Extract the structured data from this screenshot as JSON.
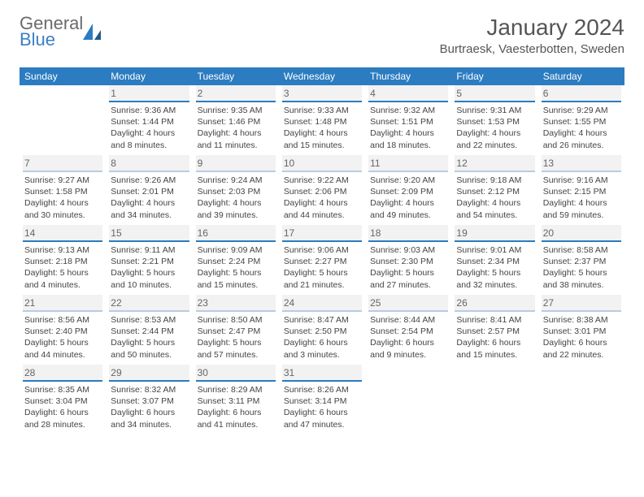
{
  "logo": {
    "line1": "General",
    "line2": "Blue"
  },
  "title": "January 2024",
  "location": "Burtraesk, Vaesterbotten, Sweden",
  "colors": {
    "header_bg": "#2b7cc0",
    "border_strong": "#2b7cc0",
    "border_light": "#b8cde2",
    "daynum_bg": "#f2f2f2",
    "text": "#444"
  },
  "weekdays": [
    "Sunday",
    "Monday",
    "Tuesday",
    "Wednesday",
    "Thursday",
    "Friday",
    "Saturday"
  ],
  "weeks": [
    [
      {
        "n": "",
        "sr": "",
        "ss": "",
        "dl": ""
      },
      {
        "n": "1",
        "sr": "Sunrise: 9:36 AM",
        "ss": "Sunset: 1:44 PM",
        "dl": "Daylight: 4 hours and 8 minutes."
      },
      {
        "n": "2",
        "sr": "Sunrise: 9:35 AM",
        "ss": "Sunset: 1:46 PM",
        "dl": "Daylight: 4 hours and 11 minutes."
      },
      {
        "n": "3",
        "sr": "Sunrise: 9:33 AM",
        "ss": "Sunset: 1:48 PM",
        "dl": "Daylight: 4 hours and 15 minutes."
      },
      {
        "n": "4",
        "sr": "Sunrise: 9:32 AM",
        "ss": "Sunset: 1:51 PM",
        "dl": "Daylight: 4 hours and 18 minutes."
      },
      {
        "n": "5",
        "sr": "Sunrise: 9:31 AM",
        "ss": "Sunset: 1:53 PM",
        "dl": "Daylight: 4 hours and 22 minutes."
      },
      {
        "n": "6",
        "sr": "Sunrise: 9:29 AM",
        "ss": "Sunset: 1:55 PM",
        "dl": "Daylight: 4 hours and 26 minutes."
      }
    ],
    [
      {
        "n": "7",
        "sr": "Sunrise: 9:27 AM",
        "ss": "Sunset: 1:58 PM",
        "dl": "Daylight: 4 hours and 30 minutes."
      },
      {
        "n": "8",
        "sr": "Sunrise: 9:26 AM",
        "ss": "Sunset: 2:01 PM",
        "dl": "Daylight: 4 hours and 34 minutes."
      },
      {
        "n": "9",
        "sr": "Sunrise: 9:24 AM",
        "ss": "Sunset: 2:03 PM",
        "dl": "Daylight: 4 hours and 39 minutes."
      },
      {
        "n": "10",
        "sr": "Sunrise: 9:22 AM",
        "ss": "Sunset: 2:06 PM",
        "dl": "Daylight: 4 hours and 44 minutes."
      },
      {
        "n": "11",
        "sr": "Sunrise: 9:20 AM",
        "ss": "Sunset: 2:09 PM",
        "dl": "Daylight: 4 hours and 49 minutes."
      },
      {
        "n": "12",
        "sr": "Sunrise: 9:18 AM",
        "ss": "Sunset: 2:12 PM",
        "dl": "Daylight: 4 hours and 54 minutes."
      },
      {
        "n": "13",
        "sr": "Sunrise: 9:16 AM",
        "ss": "Sunset: 2:15 PM",
        "dl": "Daylight: 4 hours and 59 minutes."
      }
    ],
    [
      {
        "n": "14",
        "sr": "Sunrise: 9:13 AM",
        "ss": "Sunset: 2:18 PM",
        "dl": "Daylight: 5 hours and 4 minutes."
      },
      {
        "n": "15",
        "sr": "Sunrise: 9:11 AM",
        "ss": "Sunset: 2:21 PM",
        "dl": "Daylight: 5 hours and 10 minutes."
      },
      {
        "n": "16",
        "sr": "Sunrise: 9:09 AM",
        "ss": "Sunset: 2:24 PM",
        "dl": "Daylight: 5 hours and 15 minutes."
      },
      {
        "n": "17",
        "sr": "Sunrise: 9:06 AM",
        "ss": "Sunset: 2:27 PM",
        "dl": "Daylight: 5 hours and 21 minutes."
      },
      {
        "n": "18",
        "sr": "Sunrise: 9:03 AM",
        "ss": "Sunset: 2:30 PM",
        "dl": "Daylight: 5 hours and 27 minutes."
      },
      {
        "n": "19",
        "sr": "Sunrise: 9:01 AM",
        "ss": "Sunset: 2:34 PM",
        "dl": "Daylight: 5 hours and 32 minutes."
      },
      {
        "n": "20",
        "sr": "Sunrise: 8:58 AM",
        "ss": "Sunset: 2:37 PM",
        "dl": "Daylight: 5 hours and 38 minutes."
      }
    ],
    [
      {
        "n": "21",
        "sr": "Sunrise: 8:56 AM",
        "ss": "Sunset: 2:40 PM",
        "dl": "Daylight: 5 hours and 44 minutes."
      },
      {
        "n": "22",
        "sr": "Sunrise: 8:53 AM",
        "ss": "Sunset: 2:44 PM",
        "dl": "Daylight: 5 hours and 50 minutes."
      },
      {
        "n": "23",
        "sr": "Sunrise: 8:50 AM",
        "ss": "Sunset: 2:47 PM",
        "dl": "Daylight: 5 hours and 57 minutes."
      },
      {
        "n": "24",
        "sr": "Sunrise: 8:47 AM",
        "ss": "Sunset: 2:50 PM",
        "dl": "Daylight: 6 hours and 3 minutes."
      },
      {
        "n": "25",
        "sr": "Sunrise: 8:44 AM",
        "ss": "Sunset: 2:54 PM",
        "dl": "Daylight: 6 hours and 9 minutes."
      },
      {
        "n": "26",
        "sr": "Sunrise: 8:41 AM",
        "ss": "Sunset: 2:57 PM",
        "dl": "Daylight: 6 hours and 15 minutes."
      },
      {
        "n": "27",
        "sr": "Sunrise: 8:38 AM",
        "ss": "Sunset: 3:01 PM",
        "dl": "Daylight: 6 hours and 22 minutes."
      }
    ],
    [
      {
        "n": "28",
        "sr": "Sunrise: 8:35 AM",
        "ss": "Sunset: 3:04 PM",
        "dl": "Daylight: 6 hours and 28 minutes."
      },
      {
        "n": "29",
        "sr": "Sunrise: 8:32 AM",
        "ss": "Sunset: 3:07 PM",
        "dl": "Daylight: 6 hours and 34 minutes."
      },
      {
        "n": "30",
        "sr": "Sunrise: 8:29 AM",
        "ss": "Sunset: 3:11 PM",
        "dl": "Daylight: 6 hours and 41 minutes."
      },
      {
        "n": "31",
        "sr": "Sunrise: 8:26 AM",
        "ss": "Sunset: 3:14 PM",
        "dl": "Daylight: 6 hours and 47 minutes."
      },
      {
        "n": "",
        "sr": "",
        "ss": "",
        "dl": ""
      },
      {
        "n": "",
        "sr": "",
        "ss": "",
        "dl": ""
      },
      {
        "n": "",
        "sr": "",
        "ss": "",
        "dl": ""
      }
    ]
  ]
}
